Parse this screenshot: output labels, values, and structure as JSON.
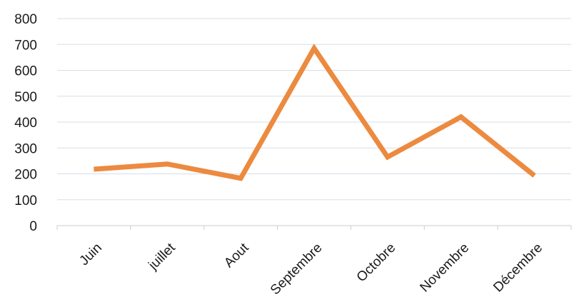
{
  "chart_data": {
    "type": "line",
    "title": "",
    "xlabel": "",
    "ylabel": "",
    "categories": [
      "Juin",
      "juillet",
      "Aout",
      "Septembre",
      "Octobre",
      "Novembre",
      "Décembre"
    ],
    "series": [
      {
        "values": [
          218,
          238,
          183,
          685,
          265,
          420,
          193
        ]
      }
    ],
    "ylim": [
      0,
      800
    ],
    "yticks": [
      0,
      100,
      200,
      300,
      400,
      500,
      600,
      700,
      800
    ],
    "grid": true,
    "legend": "none",
    "colors": {
      "line": "#ec8a3f",
      "grid": "#d9dde6",
      "axis": "#c9ccd3",
      "text": "#1a1a1a"
    }
  }
}
